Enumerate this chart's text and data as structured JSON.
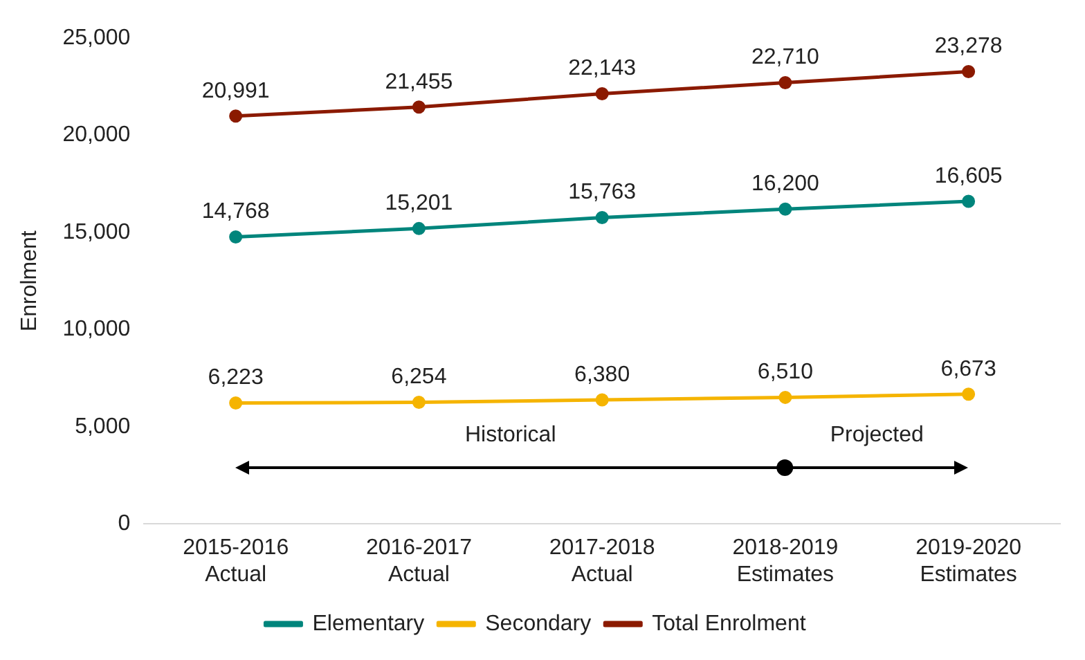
{
  "chart_data": {
    "type": "line",
    "ylabel": "Enrolment",
    "categories": [
      "2015-2016 Actual",
      "2016-2017 Actual",
      "2017-2018 Actual",
      "2018-2019 Estimates",
      "2019-2020 Estimates"
    ],
    "series": [
      {
        "name": "Elementary",
        "color": "#00857c",
        "values": [
          14768,
          15201,
          15763,
          16200,
          16605
        ],
        "value_labels": [
          "14,768",
          "15,201",
          "15,763",
          "16,200",
          "16,605"
        ]
      },
      {
        "name": "Secondary",
        "color": "#f5b400",
        "values": [
          6223,
          6254,
          6380,
          6510,
          6673
        ],
        "value_labels": [
          "6,223",
          "6,254",
          "6,380",
          "6,510",
          "6,673"
        ]
      },
      {
        "name": "Total Enrolment",
        "color": "#8b1a00",
        "values": [
          20991,
          21455,
          22143,
          22710,
          23278
        ],
        "value_labels": [
          "20,991",
          "21,455",
          "22,143",
          "22,710",
          "23,278"
        ]
      }
    ],
    "ylim": [
      0,
      25000
    ],
    "yticks": [
      0,
      {
        "value": 5000,
        "label": "5,000"
      },
      {
        "value": 10000,
        "label": "10,000"
      },
      {
        "value": 15000,
        "label": "15,000"
      },
      {
        "value": 20000,
        "label": "20,000"
      },
      {
        "value": 25000,
        "label": "25,000"
      }
    ],
    "grid": false,
    "legend": "bottom",
    "marker": "circle",
    "line_style": "solid",
    "annotations": [
      "Historical",
      "Projected"
    ]
  }
}
